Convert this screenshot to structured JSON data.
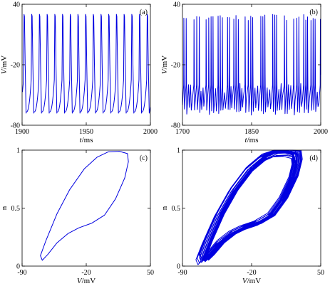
{
  "chart_data": [
    {
      "id": "a",
      "type": "line",
      "panel_label": "(a)",
      "xlabel_var": "t",
      "xlabel_unit": "/ms",
      "ylabel_var": "V",
      "ylabel_unit": "/mV",
      "xlim": [
        1900,
        2000
      ],
      "ylim": [
        -80,
        40
      ],
      "xticks": [
        "1900",
        "1950",
        "2000"
      ],
      "yticks": [
        "-80",
        "-20",
        "40"
      ],
      "xtick_values": [
        1900,
        1950,
        2000
      ],
      "ytick_values": [
        -80,
        -20,
        40
      ],
      "color": "#0000e0",
      "signal": "periodic_spiking",
      "spike_peak": 30,
      "trough": -67,
      "spike_times": [
        1901.5,
        1907.5,
        1913.5,
        1919.5,
        1925.5,
        1931.5,
        1937.5,
        1943.5,
        1949.5,
        1955.5,
        1961.5,
        1967.5,
        1973.5,
        1979.5,
        1985.5,
        1991.5,
        1997.5
      ]
    },
    {
      "id": "b",
      "type": "line",
      "panel_label": "(b)",
      "xlabel_var": "t",
      "xlabel_unit": "/ms",
      "ylabel_var": "V",
      "ylabel_unit": "/mV",
      "xlim": [
        1700,
        2000
      ],
      "ylim": [
        -80,
        40
      ],
      "xticks": [
        "1700",
        "1850",
        "2000"
      ],
      "yticks": [
        "-80",
        "-20",
        "40"
      ],
      "xtick_values": [
        1700,
        1850,
        2000
      ],
      "ytick_values": [
        -80,
        -20,
        40
      ],
      "color": "#0000e0",
      "signal": "chaotic_spiking",
      "spike_peak": 30,
      "trough": -70
    },
    {
      "id": "c",
      "type": "line",
      "panel_label": "(c)",
      "xlabel_var": "V",
      "xlabel_unit": "/mV",
      "ylabel_var": "",
      "ylabel_unit": "n",
      "xlim": [
        -90,
        50
      ],
      "ylim": [
        0,
        1
      ],
      "xticks": [
        "-90",
        "-20",
        "50"
      ],
      "yticks": [
        "0",
        "0.5",
        "1"
      ],
      "xtick_values": [
        -90,
        -20,
        50
      ],
      "ytick_values": [
        0,
        0.5,
        1
      ],
      "color": "#0000e0",
      "signal": "limit_cycle",
      "loop": [
        [
          -68,
          0.05
        ],
        [
          -62,
          0.1
        ],
        [
          -52,
          0.2
        ],
        [
          -40,
          0.28
        ],
        [
          -28,
          0.33
        ],
        [
          -14,
          0.37
        ],
        [
          0,
          0.44
        ],
        [
          12,
          0.58
        ],
        [
          22,
          0.76
        ],
        [
          26,
          0.9
        ],
        [
          25,
          0.97
        ],
        [
          16,
          0.99
        ],
        [
          4,
          0.985
        ],
        [
          -8,
          0.94
        ],
        [
          -22,
          0.84
        ],
        [
          -38,
          0.66
        ],
        [
          -52,
          0.45
        ],
        [
          -64,
          0.22
        ],
        [
          -70,
          0.09
        ]
      ]
    },
    {
      "id": "d",
      "type": "line",
      "panel_label": "(d)",
      "xlabel_var": "V",
      "xlabel_unit": "/mV",
      "ylabel_var": "",
      "ylabel_unit": "n",
      "xlim": [
        -90,
        50
      ],
      "ylim": [
        0,
        1
      ],
      "xticks": [
        "-90",
        "-20",
        "50"
      ],
      "yticks": [
        "0",
        "0.5",
        "1"
      ],
      "xtick_values": [
        -90,
        -20,
        50
      ],
      "ytick_values": [
        0,
        0.5,
        1
      ],
      "color": "#0000e0",
      "signal": "chaotic_attractor",
      "loop": [
        [
          -68,
          0.05
        ],
        [
          -62,
          0.1
        ],
        [
          -52,
          0.2
        ],
        [
          -40,
          0.28
        ],
        [
          -28,
          0.33
        ],
        [
          -14,
          0.37
        ],
        [
          0,
          0.44
        ],
        [
          12,
          0.58
        ],
        [
          22,
          0.76
        ],
        [
          26,
          0.9
        ],
        [
          25,
          0.97
        ],
        [
          16,
          0.99
        ],
        [
          4,
          0.985
        ],
        [
          -8,
          0.94
        ],
        [
          -22,
          0.84
        ],
        [
          -38,
          0.66
        ],
        [
          -52,
          0.45
        ],
        [
          -64,
          0.22
        ],
        [
          -70,
          0.09
        ]
      ]
    }
  ]
}
